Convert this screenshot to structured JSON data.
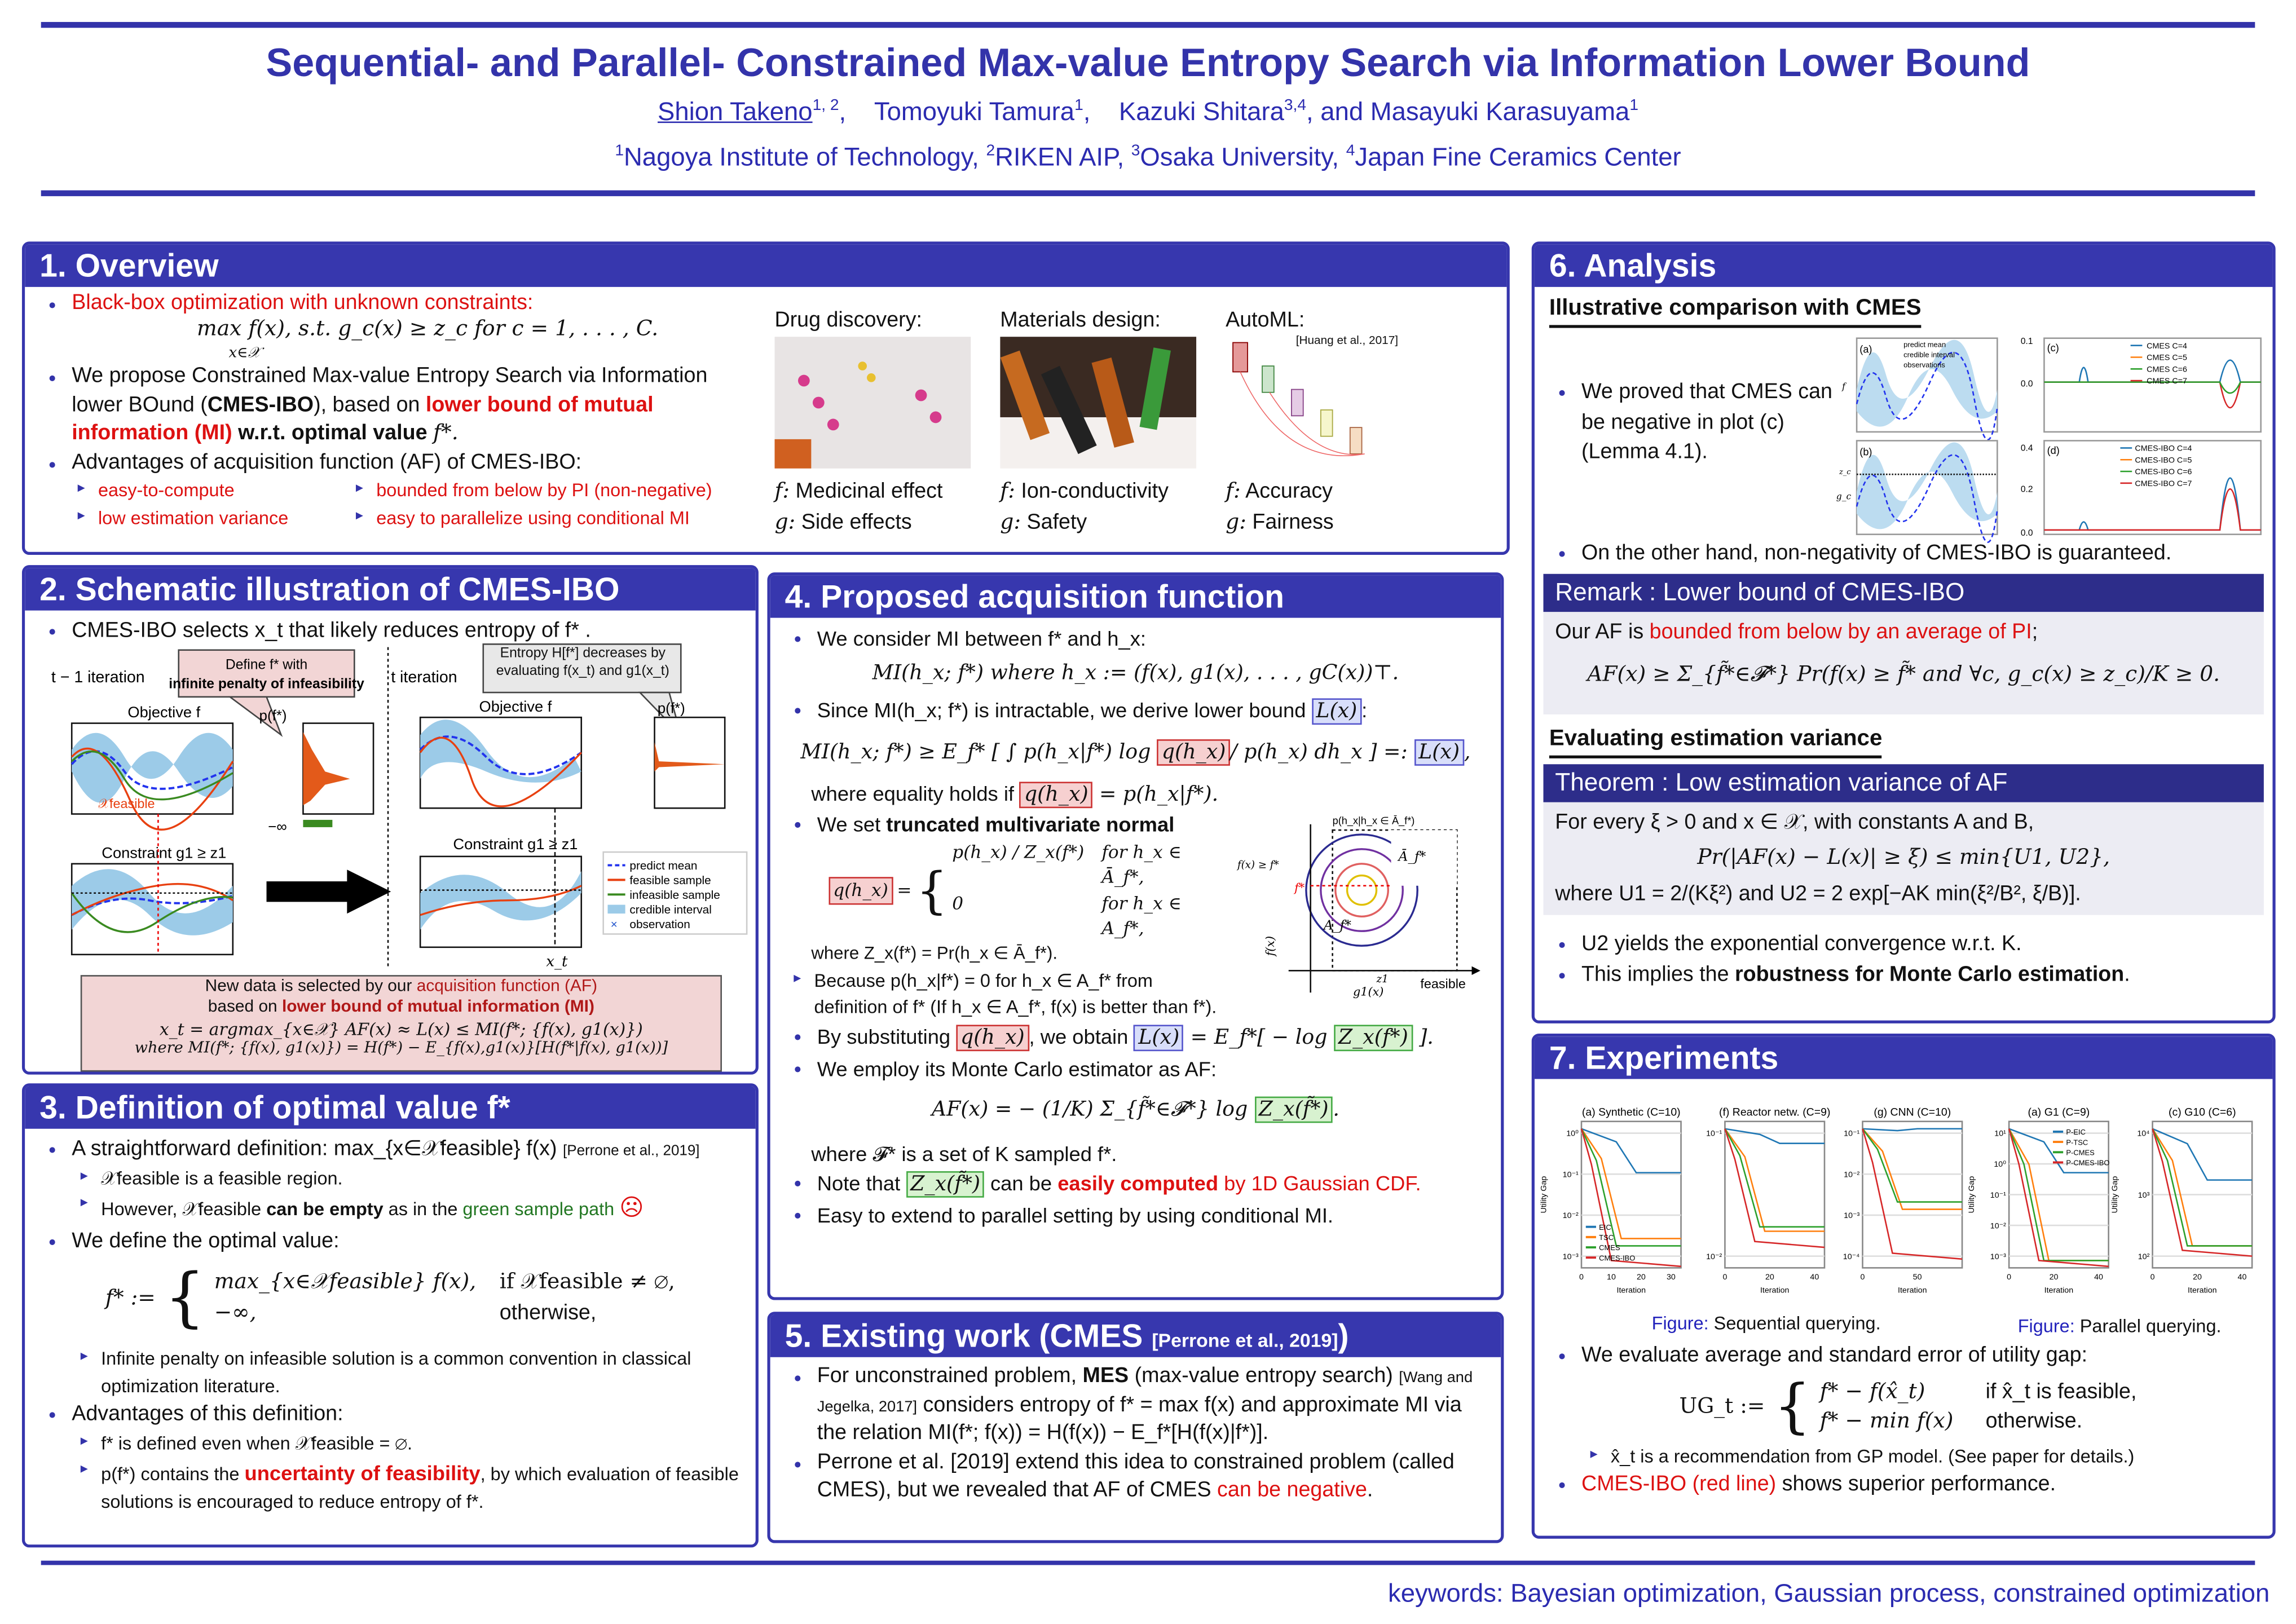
{
  "header": {
    "title": "Sequential- and Parallel- Constrained Max-value Entropy Search via Information Lower Bound",
    "authors": [
      {
        "name": "Shion Takeno",
        "sup": "1, 2"
      },
      {
        "name": "Tomoyuki Tamura",
        "sup": "1"
      },
      {
        "name": "Kazuki Shitara",
        "sup": "3,4"
      },
      {
        "name": "and Masayuki Karasuyama",
        "sup": "1"
      }
    ],
    "affiliations": [
      {
        "sup": "1",
        "name": "Nagoya Institute of Technology,"
      },
      {
        "sup": "2",
        "name": "RIKEN AIP,"
      },
      {
        "sup": "3",
        "name": "Osaka University,"
      },
      {
        "sup": "4",
        "name": "Japan Fine Ceramics Center"
      }
    ]
  },
  "overview": {
    "title": "1. Overview",
    "b1": "Black-box optimization with unknown constraints:",
    "eq1": "max f(x), s.t. g_c(x) ≥ z_c for c = 1, . . . , C.",
    "eq1_sub": "x∈𝒳",
    "b2_a": "We propose Constrained Max-value Entropy Search via Information lower BOund (",
    "b2_b": "CMES-IBO",
    "b2_c": "), based on ",
    "b2_d": "lower bound of mutual information (MI)",
    "b2_e": " w.r.t. optimal value ",
    "b2_f": "f*.",
    "b3": "Advantages of acquisition function (AF) of CMES-IBO:",
    "adv": [
      "easy-to-compute",
      "bounded from below by PI (non-negative)",
      "low estimation variance",
      "easy to parallelize using conditional MI"
    ],
    "apps": [
      {
        "title": "Drug discovery:",
        "f": "Medicinal effect",
        "g": "Side effects"
      },
      {
        "title": "Materials design:",
        "f": "Ion-conductivity",
        "g": "Safety"
      },
      {
        "title": "AutoML:",
        "f": "Accuracy",
        "g": "Fairness",
        "cite": "[Huang et al., 2017]"
      }
    ],
    "f_label": "f:",
    "g_label": "g:"
  },
  "schematic": {
    "title": "2. Schematic illustration of CMES-IBO",
    "b1": "CMES-IBO selects x_t that likely reduces entropy of f* .",
    "left_iter": "t − 1 iteration",
    "right_iter": "t iteration",
    "callout_left_a": "Define f* with ",
    "callout_left_b": "infinite penalty of infeasibility",
    "callout_right": "Entropy H[f*] decreases by evaluating f(x_t) and g1(x_t)",
    "objective": "Objective f",
    "constraint": "Constraint g1 ≥ z1",
    "pfs": "p(f*)",
    "feasible": "𝒳feasible",
    "neg_inf": "−∞",
    "xt": "x_t",
    "legend": [
      "predict mean",
      "feasible sample",
      "infeasible sample",
      "credible interval",
      "observation"
    ],
    "bottom_a": "New data is selected by our ",
    "bottom_b": "acquisition function (AF)",
    "bottom_c": "based on ",
    "bottom_d": "lower bound of mutual information (MI)",
    "bottom_eq1": "x_t = argmax_{x∈𝒳} AF(x) ≈ L(x) ≤ MI(f*; {f(x), g1(x)})",
    "bottom_eq2": "where MI(f*; {f(x), g1(x)}) = H(f*) − E_{f(x),g1(x)}[H(f*|f(x), g1(x))]"
  },
  "definition": {
    "title": "3. Definition of optimal value f*",
    "b1_a": "A straightforward definition: max_{x∈𝒳feasible} f(x)",
    "b1_cite": "[Perrone et al., 2019]",
    "s1": "𝒳feasible is a feasible region.",
    "s2_a": "However, 𝒳feasible ",
    "s2_b": "can be empty",
    "s2_c": " as in the ",
    "s2_d": "green sample path",
    "s2_e": "☹",
    "b2": "We define the optimal value:",
    "eq_lhs": "f* :=",
    "eq_case1": "max_{x∈𝒳feasible} f(x),",
    "eq_cond1": "if 𝒳feasible ≠ ∅,",
    "eq_case2": "−∞,",
    "eq_cond2": "otherwise,",
    "s3": "Infinite penalty on infeasible solution is a common convention in classical optimization literature.",
    "b3": "Advantages of this definition:",
    "s4": "f* is defined even when 𝒳feasible = ∅.",
    "s5_a": "p(f*) contains the ",
    "s5_b": "uncertainty of feasibility",
    "s5_c": ", by which evaluation of feasible solutions is encouraged to reduce entropy of f*."
  },
  "proposed": {
    "title": "4. Proposed acquisition function",
    "b1": "We consider MI between f* and h_x:",
    "eq1": "MI(h_x; f*) where h_x := (f(x), g1(x), . . . , gC(x))⊤.",
    "b2_a": "Since MI(h_x; f*) is intractable, we derive lower bound ",
    "b2_L": "L(x)",
    "eq2_a": "MI(h_x; f*) ≥ E_f* [ ∫ p(h_x|f*) log ",
    "eq2_q": "q(h_x)",
    "eq2_b": "/ p(h_x) dh_x ] =: ",
    "eq2_L": "L(x)",
    "eq2_c": ",",
    "equality_a": "where equality holds if ",
    "equality_q": "q(h_x)",
    "equality_b": " = p(h_x|f*).",
    "b3_a": "We set ",
    "b3_b": "truncated multivariate normal",
    "q_lhs": "q(h_x)",
    "q_case1": "p(h_x) / Z_x(f*)",
    "q_cond1": "for h_x ∈ Ā_f*,",
    "q_case2": "0",
    "q_cond2": "for h_x ∈ A_f*,",
    "where_z": "where Z_x(f*) = Pr(h_x ∈ Ā_f*).",
    "s1": "Because p(h_x|f*) = 0 for h_x ∈ A_f* from definition of f* (If h_x ∈ A_f*, f(x) is better than f*).",
    "fig_top": "p(h_x|h_x ∈ Ā_f*)",
    "fig_A_bar": "Ā_f*",
    "fig_A": "A_f*",
    "fig_f": "f(x)",
    "fig_g": "g1(x)",
    "fig_fs": "f*",
    "fig_fcond": "f(x) ≥ f*",
    "fig_z": "z1",
    "fig_feasible": "feasible",
    "b4_a": "By substituting ",
    "b4_q": "q(h_x)",
    "b4_b": ", we obtain ",
    "b4_L": "L(x)",
    "b4_c": " = E_f*[ − log ",
    "b4_Z": "Z_x(f*)",
    "b4_d": " ].",
    "b5": "We employ its Monte Carlo estimator as AF:",
    "eq3_a": "AF(x) = − (1/K) Σ_{f̃*∈𝓕*} log ",
    "eq3_Z": "Z_x(f̃*)",
    "eq3_b": ".",
    "where_F": "where 𝓕* is a set of K sampled f*.",
    "b6_a": "Note that ",
    "b6_Z": "Z_x(f̃*)",
    "b6_b": " can be ",
    "b6_c": "easily computed",
    "b6_d": " by 1D Gaussian CDF.",
    "b7": "Easy to extend to parallel setting by using conditional MI."
  },
  "existing": {
    "title": "5. Existing work (CMES",
    "cite": "[Perrone et al., 2019]",
    "title_end": ")",
    "b1_a": "For unconstrained problem, ",
    "b1_b": "MES",
    "b1_c": " (max-value entropy search) ",
    "b1_cite": "[Wang and Jegelka, 2017]",
    "b1_d": " considers entropy of f* = max f(x) and approximate MI via the relation MI(f*; f(x)) = H(f(x)) − E_f*[H(f(x)|f*)].",
    "b2_a": "Perrone et al. [2019] extend this idea to constrained problem (called CMES), but we revealed that AF of CMES ",
    "b2_b": "can be negative",
    "b2_c": "."
  },
  "analysis": {
    "title": "6. Analysis",
    "sub1": "Illustrative comparison with CMES",
    "b1": "We proved that CMES can be negative in plot (c) (Lemma 4.1).",
    "plot_ab_legend": [
      "predict mean",
      "credible interval",
      "observations"
    ],
    "plot_a": "(a)",
    "plot_b": "(b)",
    "plot_c": "(c)",
    "plot_d": "(d)",
    "ylab_a": "f",
    "ylab_b": "g_c",
    "zc": "z_c",
    "c_ticks": [
      "0.1",
      "0.0"
    ],
    "d_ticks": [
      "0.4",
      "0.2",
      "0.0"
    ],
    "c_legend": [
      "CMES C=4",
      "CMES C=5",
      "CMES C=6",
      "CMES C=7"
    ],
    "d_legend": [
      "CMES-IBO C=4",
      "CMES-IBO C=5",
      "CMES-IBO C=6",
      "CMES-IBO C=7"
    ],
    "series_colors": [
      "#1f77b4",
      "#ff7f0e",
      "#2ca02c",
      "#d62728"
    ],
    "b2": "On the other hand, non-negativity of CMES-IBO is guaranteed.",
    "remark_hd": "Remark : Lower bound of CMES-IBO",
    "remark_a": "Our AF is ",
    "remark_b": "bounded from below by an average of PI",
    "remark_c": ";",
    "remark_eq": "AF(x) ≥ Σ_{f̃*∈𝓕*} Pr(f(x) ≥ f̃* and ∀c, g_c(x) ≥ z_c)/K ≥ 0.",
    "sub2": "Evaluating estimation variance",
    "theorem_hd": "Theorem : Low estimation variance of AF",
    "th1": "For every ξ > 0 and x ∈ 𝒳, with constants A and B,",
    "th_eq": "Pr(|AF(x) − L(x)| ≥ ξ) ≤ min{U1, U2},",
    "th2": "where U1 = 2/(Kξ²) and U2 = 2 exp[−AK min(ξ²/B², ξ/B)].",
    "b3": "U2 yields the exponential convergence w.r.t. K.",
    "b4_a": "This implies the ",
    "b4_b": "robustness for Monte Carlo estimation",
    "b4_c": "."
  },
  "experiments": {
    "title": "7. Experiments",
    "plots": [
      {
        "title": "(a) Synthetic (C=10)",
        "xticks": [
          "0",
          "10",
          "20",
          "30"
        ],
        "yticks": [
          "10⁰",
          "10⁻¹",
          "10⁻²",
          "10⁻³"
        ]
      },
      {
        "title": "(f) Reactor netw. (C=9)",
        "xticks": [
          "0",
          "20",
          "40"
        ],
        "yticks": [
          "10⁻¹",
          "10⁻²"
        ]
      },
      {
        "title": "(g) CNN (C=10)",
        "xticks": [
          "0",
          "50"
        ],
        "yticks": [
          "10⁻¹",
          "10⁻²",
          "10⁻³",
          "10⁻⁴"
        ]
      },
      {
        "title": "(a) G1 (C=9)",
        "xticks": [
          "0",
          "20",
          "40"
        ],
        "yticks": [
          "10¹",
          "10⁰",
          "10⁻¹",
          "10⁻²",
          "10⁻³"
        ]
      },
      {
        "title": "(c) G10 (C=6)",
        "xticks": [
          "0",
          "20",
          "40"
        ],
        "yticks": [
          "10⁴",
          "10³",
          "10²"
        ]
      }
    ],
    "ylabel": "Utility Gap",
    "xlabel": "Iteration",
    "seq_legend": [
      "EIC",
      "TSC",
      "CMES",
      "CMES-IBO"
    ],
    "par_legend": [
      "P-EIC",
      "P-TSC",
      "P-CMES",
      "P-CMES-IBO"
    ],
    "cap_label": "Figure:",
    "cap_seq": "Sequential querying.",
    "cap_par": "Parallel querying.",
    "b1": "We evaluate average and standard error of utility gap:",
    "ug_lhs": "UG_t :=",
    "ug_case1": "f* − f(x̂_t)",
    "ug_cond1": "if x̂_t is feasible,",
    "ug_case2": "f* − min f(x)",
    "ug_cond2": "otherwise.",
    "s1": "x̂_t is a recommendation from GP model. (See paper for details.)",
    "b2_a": "CMES-IBO (red line)",
    "b2_b": " shows superior performance."
  },
  "footer": {
    "keywords": "keywords: Bayesian optimization, Gaussian process, constrained optimization"
  },
  "colors": {
    "accent": "#3737ae",
    "red": "#dd1111",
    "header_text": "#3333aa"
  }
}
